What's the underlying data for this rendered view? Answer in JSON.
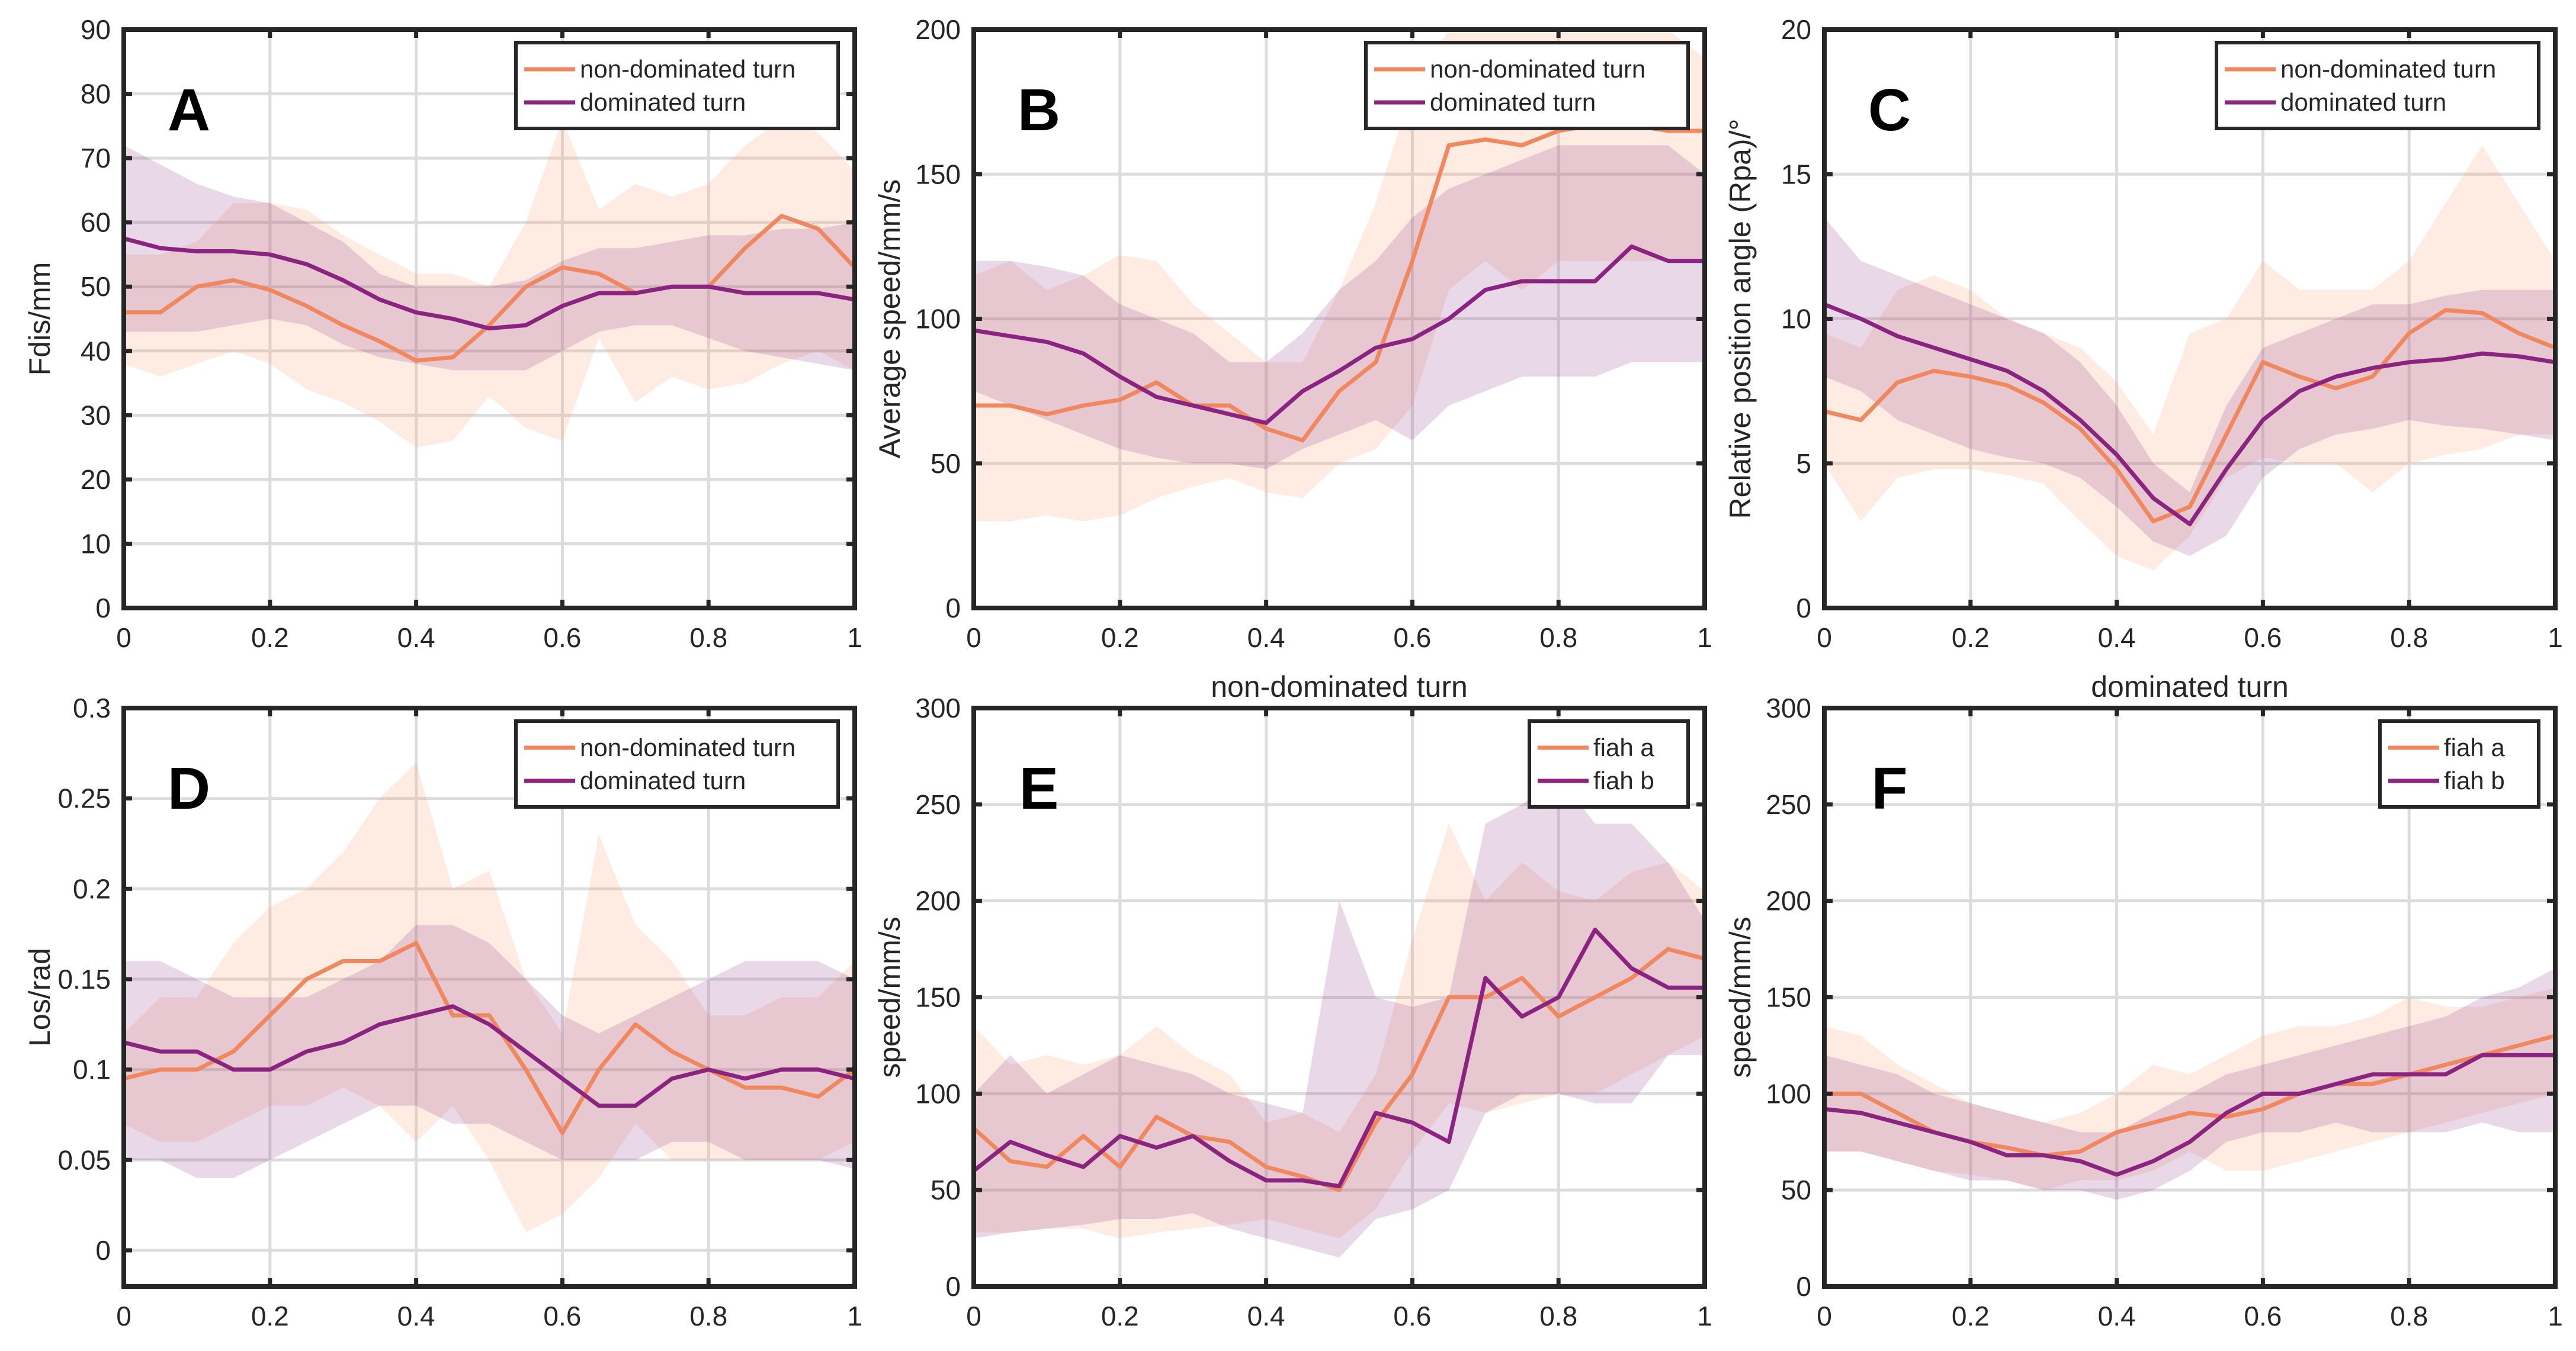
{
  "colors": {
    "a": "#F0875E",
    "b": "#8B2381",
    "band_a": "#F9A27A",
    "band_b": "#8E3A8C",
    "grid": "#DCDCDC",
    "axis": "#262626"
  },
  "chart_data": [
    {
      "type": "area",
      "panel": "A",
      "xlabel": "",
      "ylabel": "Fdis/mm",
      "xlim": [
        0,
        1
      ],
      "ylim": [
        0,
        90
      ],
      "xticks": [
        0,
        0.2,
        0.4,
        0.6,
        0.8,
        1
      ],
      "yticks": [
        0,
        10,
        20,
        30,
        40,
        50,
        60,
        70,
        80,
        90
      ],
      "grid": true,
      "legend": "top-right",
      "x": [
        0,
        0.05,
        0.1,
        0.15,
        0.2,
        0.25,
        0.3,
        0.35,
        0.4,
        0.45,
        0.5,
        0.55,
        0.6,
        0.65,
        0.7,
        0.75,
        0.8,
        0.85,
        0.9,
        0.95,
        1
      ],
      "series": [
        {
          "name": "non-dominated turn",
          "mean": [
            46,
            46,
            50,
            51,
            49.5,
            47,
            44,
            41.5,
            38.5,
            39,
            44,
            50,
            53,
            52,
            49,
            50,
            50,
            56,
            61,
            59,
            53
          ],
          "lower": [
            38,
            36,
            38,
            40,
            38,
            34,
            32,
            29,
            25,
            26,
            33,
            28,
            26,
            42,
            32,
            36,
            34,
            35,
            38,
            40,
            37
          ],
          "upper": [
            55,
            55,
            57,
            63,
            63,
            62,
            58,
            55,
            52,
            52,
            50,
            60,
            76,
            62,
            66,
            64,
            66,
            72,
            76,
            74,
            68
          ]
        },
        {
          "name": "dominated turn",
          "mean": [
            57.5,
            56,
            55.5,
            55.5,
            55,
            53.5,
            51,
            48,
            46,
            45,
            43.5,
            44,
            47,
            49,
            49,
            50,
            50,
            49,
            49,
            49,
            48
          ],
          "lower": [
            43,
            43,
            43,
            44,
            45,
            44,
            41,
            39,
            38,
            37,
            37,
            37,
            40,
            43,
            44,
            44,
            42,
            40,
            39,
            38,
            37
          ],
          "upper": [
            72,
            69,
            66,
            64,
            63,
            60,
            57,
            52,
            50,
            50,
            50,
            51,
            54,
            56,
            56,
            57,
            58,
            58,
            59,
            59,
            60
          ]
        }
      ]
    },
    {
      "type": "area",
      "panel": "B",
      "xlabel": "non-dominated turn",
      "ylabel": "Average speed/mm/s",
      "xlim": [
        0,
        1
      ],
      "ylim": [
        0,
        200
      ],
      "xticks": [
        0,
        0.2,
        0.4,
        0.6,
        0.8,
        1
      ],
      "yticks": [
        0,
        50,
        100,
        150,
        200
      ],
      "grid": true,
      "legend": "top-right",
      "x": [
        0,
        0.05,
        0.1,
        0.15,
        0.2,
        0.25,
        0.3,
        0.35,
        0.4,
        0.45,
        0.5,
        0.55,
        0.6,
        0.65,
        0.7,
        0.75,
        0.8,
        0.85,
        0.9,
        0.95,
        1
      ],
      "series": [
        {
          "name": "non-dominated turn",
          "mean": [
            70,
            70,
            67,
            70,
            72,
            78,
            70,
            70,
            62,
            58,
            75,
            85,
            120,
            160,
            162,
            160,
            165,
            167,
            167,
            165,
            165
          ],
          "lower": [
            30,
            30,
            32,
            30,
            32,
            38,
            42,
            45,
            40,
            38,
            50,
            55,
            70,
            110,
            120,
            110,
            120,
            120,
            120,
            120,
            120
          ],
          "upper": [
            115,
            120,
            110,
            115,
            122,
            120,
            105,
            95,
            85,
            85,
            110,
            140,
            180,
            200,
            200,
            200,
            200,
            200,
            200,
            200,
            190
          ]
        },
        {
          "name": "dominated turn",
          "mean": [
            96,
            94,
            92,
            88,
            80,
            73,
            70,
            67,
            64,
            75,
            82,
            90,
            93,
            100,
            110,
            113,
            113,
            113,
            125,
            120,
            120
          ],
          "lower": [
            75,
            70,
            65,
            60,
            55,
            52,
            50,
            50,
            48,
            55,
            60,
            65,
            58,
            70,
            75,
            80,
            80,
            80,
            85,
            85,
            85
          ],
          "upper": [
            120,
            120,
            118,
            115,
            105,
            100,
            95,
            85,
            85,
            95,
            110,
            120,
            135,
            145,
            150,
            155,
            160,
            160,
            160,
            160,
            150
          ]
        }
      ]
    },
    {
      "type": "area",
      "panel": "C",
      "xlabel": "dominated turn",
      "ylabel": "Relative position angle (Rpa)/°",
      "xlim": [
        0,
        1
      ],
      "ylim": [
        0,
        20
      ],
      "xticks": [
        0,
        0.2,
        0.4,
        0.6,
        0.8,
        1
      ],
      "yticks": [
        0,
        5,
        10,
        15,
        20
      ],
      "grid": true,
      "legend": "top-right",
      "x": [
        0,
        0.05,
        0.1,
        0.15,
        0.2,
        0.25,
        0.3,
        0.35,
        0.4,
        0.45,
        0.5,
        0.55,
        0.6,
        0.65,
        0.7,
        0.75,
        0.8,
        0.85,
        0.9,
        0.95,
        1
      ],
      "series": [
        {
          "name": "non-dominated turn",
          "mean": [
            6.8,
            6.5,
            7.8,
            8.2,
            8,
            7.7,
            7.1,
            6.2,
            4.8,
            3,
            3.5,
            6,
            8.5,
            8,
            7.6,
            8,
            9.5,
            10.3,
            10.2,
            9.5,
            9
          ],
          "lower": [
            5,
            3,
            4.5,
            4.8,
            4.8,
            4.6,
            4.3,
            3,
            1.8,
            1.3,
            2.5,
            4.5,
            5.2,
            5,
            5,
            4,
            5,
            5.3,
            5.5,
            6,
            6
          ],
          "upper": [
            9.5,
            9,
            11,
            11.5,
            11,
            10,
            9.5,
            9,
            7.8,
            6,
            9.5,
            10,
            12,
            11,
            11,
            11,
            12,
            14,
            16,
            14,
            12
          ]
        },
        {
          "name": "dominated turn",
          "mean": [
            10.5,
            10,
            9.4,
            9,
            8.6,
            8.2,
            7.5,
            6.5,
            5.3,
            3.8,
            2.9,
            4.8,
            6.5,
            7.5,
            8,
            8.3,
            8.5,
            8.6,
            8.8,
            8.7,
            8.5
          ],
          "lower": [
            8,
            7.5,
            6.5,
            6,
            5.5,
            5.2,
            5,
            4.5,
            3.5,
            2.3,
            1.8,
            2.5,
            4.5,
            5.5,
            6,
            6.2,
            6.5,
            6.3,
            6.2,
            6,
            5.8
          ],
          "upper": [
            13.5,
            12,
            11.5,
            11,
            10.5,
            10,
            9.5,
            8.5,
            7,
            5,
            4,
            7,
            9,
            9.5,
            10,
            10.5,
            10.5,
            10.8,
            11,
            11,
            11
          ]
        }
      ]
    },
    {
      "type": "area",
      "panel": "D",
      "xlabel": "",
      "ylabel": "Los/rad",
      "xlim": [
        0,
        1
      ],
      "ylim": [
        -0.02,
        0.3
      ],
      "xticks": [
        0,
        0.2,
        0.4,
        0.6,
        0.8,
        1
      ],
      "yticks": [
        0,
        0.05,
        0.1,
        0.15,
        0.2,
        0.25,
        0.3
      ],
      "grid": true,
      "legend": "top-right",
      "x": [
        0,
        0.05,
        0.1,
        0.15,
        0.2,
        0.25,
        0.3,
        0.35,
        0.4,
        0.45,
        0.5,
        0.55,
        0.6,
        0.65,
        0.7,
        0.75,
        0.8,
        0.85,
        0.9,
        0.95,
        1
      ],
      "series": [
        {
          "name": "non-dominated turn",
          "mean": [
            0.095,
            0.1,
            0.1,
            0.11,
            0.13,
            0.15,
            0.16,
            0.16,
            0.17,
            0.13,
            0.13,
            0.1,
            0.065,
            0.1,
            0.125,
            0.11,
            0.1,
            0.09,
            0.09,
            0.085,
            0.1
          ],
          "lower": [
            0.07,
            0.06,
            0.06,
            0.07,
            0.08,
            0.08,
            0.09,
            0.08,
            0.06,
            0.08,
            0.05,
            0.01,
            0.02,
            0.04,
            0.07,
            0.05,
            0.05,
            0.05,
            0.05,
            0.05,
            0.06
          ],
          "upper": [
            0.12,
            0.14,
            0.14,
            0.17,
            0.19,
            0.2,
            0.22,
            0.25,
            0.27,
            0.2,
            0.21,
            0.15,
            0.12,
            0.23,
            0.18,
            0.16,
            0.13,
            0.13,
            0.14,
            0.14,
            0.16
          ]
        },
        {
          "name": "dominated turn",
          "mean": [
            0.115,
            0.11,
            0.11,
            0.1,
            0.1,
            0.11,
            0.115,
            0.125,
            0.13,
            0.135,
            0.125,
            0.11,
            0.095,
            0.08,
            0.08,
            0.095,
            0.1,
            0.095,
            0.1,
            0.1,
            0.095
          ],
          "lower": [
            0.05,
            0.05,
            0.04,
            0.04,
            0.05,
            0.06,
            0.07,
            0.08,
            0.08,
            0.07,
            0.07,
            0.06,
            0.05,
            0.05,
            0.05,
            0.06,
            0.06,
            0.05,
            0.05,
            0.05,
            0.045
          ],
          "upper": [
            0.16,
            0.16,
            0.15,
            0.14,
            0.14,
            0.14,
            0.15,
            0.16,
            0.18,
            0.18,
            0.17,
            0.15,
            0.13,
            0.12,
            0.13,
            0.14,
            0.15,
            0.16,
            0.16,
            0.16,
            0.15
          ]
        }
      ]
    },
    {
      "type": "area",
      "panel": "E",
      "xlabel": "",
      "ylabel": "speed/mm/s",
      "xlim": [
        0,
        1
      ],
      "ylim": [
        0,
        300
      ],
      "xticks": [
        0,
        0.2,
        0.4,
        0.6,
        0.8,
        1
      ],
      "yticks": [
        0,
        50,
        100,
        150,
        200,
        250,
        300
      ],
      "grid": true,
      "legend": "top-right",
      "x": [
        0,
        0.05,
        0.1,
        0.15,
        0.2,
        0.25,
        0.3,
        0.35,
        0.4,
        0.45,
        0.5,
        0.55,
        0.6,
        0.65,
        0.7,
        0.75,
        0.8,
        0.85,
        0.9,
        0.95,
        1
      ],
      "series": [
        {
          "name": "fiah a",
          "mean": [
            82,
            65,
            62,
            78,
            62,
            88,
            78,
            75,
            62,
            57,
            50,
            85,
            110,
            150,
            150,
            160,
            140,
            150,
            160,
            175,
            170
          ],
          "lower": [
            28,
            28,
            30,
            30,
            25,
            28,
            30,
            32,
            35,
            30,
            25,
            40,
            70,
            95,
            90,
            95,
            100,
            100,
            110,
            120,
            130
          ],
          "upper": [
            135,
            115,
            120,
            115,
            120,
            135,
            120,
            110,
            85,
            90,
            80,
            110,
            180,
            240,
            200,
            220,
            205,
            200,
            215,
            220,
            205
          ]
        },
        {
          "name": "fiah b",
          "mean": [
            60,
            75,
            68,
            62,
            78,
            72,
            78,
            65,
            55,
            55,
            52,
            90,
            85,
            75,
            160,
            140,
            150,
            185,
            165,
            155,
            155
          ],
          "lower": [
            25,
            28,
            30,
            32,
            35,
            35,
            38,
            30,
            25,
            20,
            15,
            35,
            40,
            50,
            90,
            100,
            100,
            95,
            95,
            120,
            120
          ],
          "upper": [
            100,
            120,
            100,
            110,
            120,
            115,
            110,
            100,
            95,
            90,
            200,
            150,
            145,
            150,
            240,
            250,
            265,
            240,
            240,
            220,
            190
          ]
        }
      ]
    },
    {
      "type": "area",
      "panel": "F",
      "xlabel": "",
      "ylabel": "speed/mm/s",
      "xlim": [
        0,
        1
      ],
      "ylim": [
        0,
        300
      ],
      "xticks": [
        0,
        0.2,
        0.4,
        0.6,
        0.8,
        1
      ],
      "yticks": [
        0,
        50,
        100,
        150,
        200,
        250,
        300
      ],
      "grid": true,
      "legend": "top-right",
      "x": [
        0,
        0.05,
        0.1,
        0.15,
        0.2,
        0.25,
        0.3,
        0.35,
        0.4,
        0.45,
        0.5,
        0.55,
        0.6,
        0.65,
        0.7,
        0.75,
        0.8,
        0.85,
        0.9,
        0.95,
        1
      ],
      "series": [
        {
          "name": "fiah a",
          "mean": [
            100,
            100,
            90,
            80,
            75,
            72,
            68,
            70,
            80,
            85,
            90,
            88,
            92,
            100,
            105,
            105,
            110,
            115,
            120,
            125,
            130
          ],
          "lower": [
            70,
            70,
            65,
            60,
            58,
            55,
            50,
            55,
            55,
            60,
            70,
            60,
            60,
            65,
            70,
            75,
            80,
            85,
            90,
            95,
            100
          ],
          "upper": [
            135,
            130,
            115,
            105,
            95,
            90,
            85,
            90,
            100,
            115,
            110,
            120,
            130,
            135,
            135,
            140,
            150,
            145,
            145,
            150,
            155
          ]
        },
        {
          "name": "fiah b",
          "mean": [
            92,
            90,
            85,
            80,
            75,
            68,
            68,
            65,
            58,
            65,
            75,
            90,
            100,
            100,
            105,
            110,
            110,
            110,
            120,
            120,
            120
          ],
          "lower": [
            70,
            70,
            65,
            60,
            55,
            55,
            50,
            50,
            45,
            50,
            60,
            75,
            80,
            80,
            85,
            80,
            80,
            80,
            85,
            80,
            80
          ],
          "upper": [
            120,
            115,
            110,
            100,
            95,
            90,
            85,
            80,
            80,
            90,
            100,
            110,
            115,
            120,
            125,
            130,
            135,
            140,
            150,
            155,
            165
          ]
        }
      ]
    }
  ]
}
